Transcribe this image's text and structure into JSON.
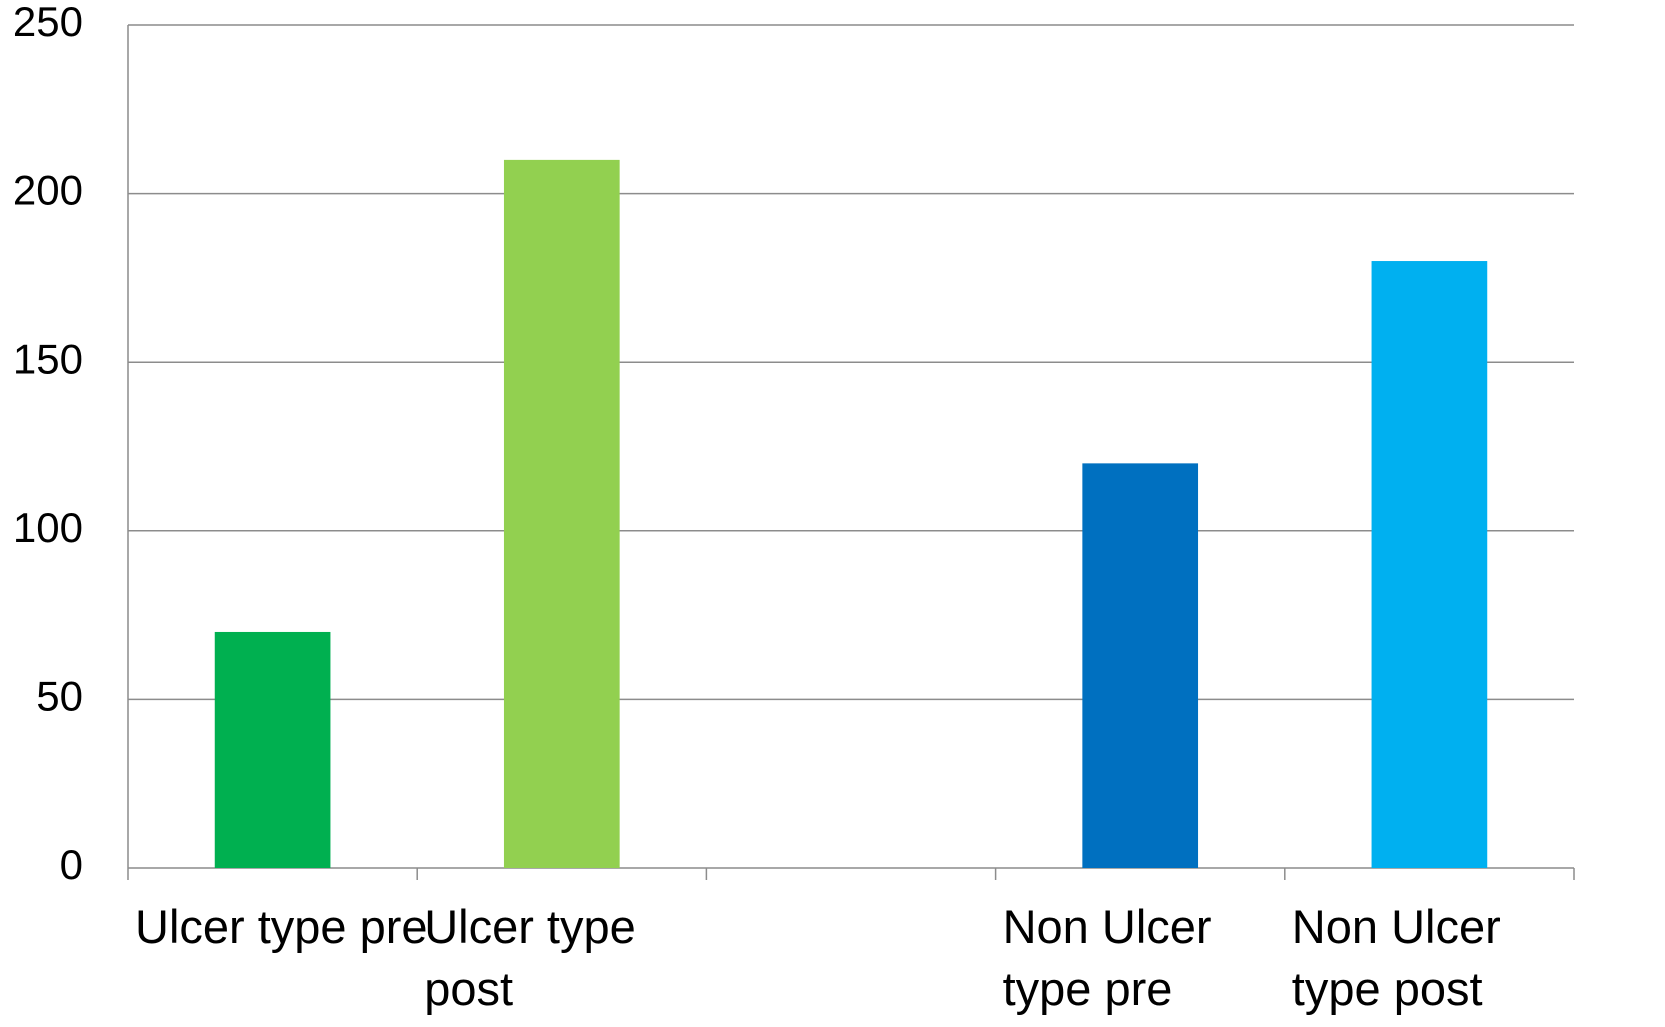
{
  "chart_data": {
    "type": "bar",
    "categories": [
      "Ulcer type pre",
      "Ulcer type post",
      null,
      "Non Ulcer type pre",
      "Non Ulcer type post"
    ],
    "values": [
      70,
      210,
      null,
      120,
      180
    ],
    "colors": [
      "#00b050",
      "#92d050",
      null,
      "#0070c0",
      "#00b0f0"
    ],
    "ylim": [
      0,
      250
    ],
    "yticks": [
      0,
      50,
      100,
      150,
      200,
      250
    ],
    "grid": true
  }
}
